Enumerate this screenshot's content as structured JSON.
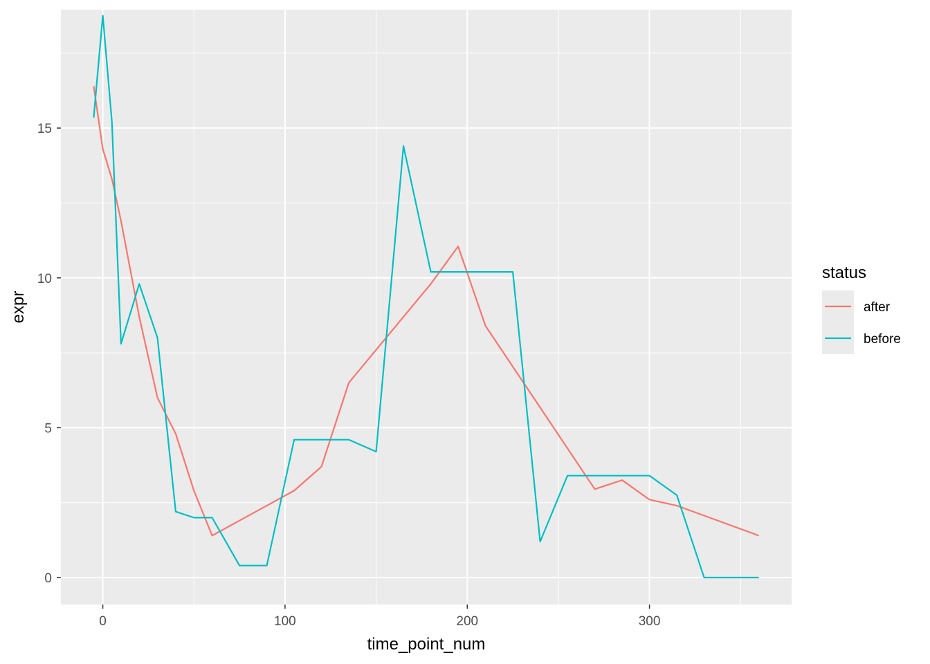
{
  "chart_data": {
    "type": "line",
    "title": "",
    "xlabel": "time_point_num",
    "ylabel": "expr",
    "xlim": [
      -23,
      378
    ],
    "ylim": [
      -0.9,
      18.95
    ],
    "x_ticks": [
      0,
      100,
      200,
      300
    ],
    "y_ticks": [
      0,
      5,
      10,
      15
    ],
    "x_tick_labels": [
      "0",
      "100",
      "200",
      "300"
    ],
    "y_tick_labels": [
      "0",
      "5",
      "10",
      "15"
    ],
    "grid": true,
    "legend": {
      "title": "status",
      "position": "right"
    },
    "series": [
      {
        "name": "after",
        "color": "#F8766D",
        "points": [
          [
            -5,
            16.4
          ],
          [
            0,
            14.3
          ],
          [
            5,
            13.3
          ],
          [
            10,
            11.9
          ],
          [
            20,
            8.7
          ],
          [
            30,
            6.0
          ],
          [
            40,
            4.8
          ],
          [
            50,
            2.9
          ],
          [
            60,
            1.4
          ],
          [
            75,
            1.9
          ],
          [
            90,
            2.4
          ],
          [
            105,
            2.9
          ],
          [
            120,
            3.7
          ],
          [
            135,
            6.5
          ],
          [
            180,
            9.8
          ],
          [
            195,
            11.05
          ],
          [
            210,
            8.4
          ],
          [
            270,
            2.95
          ],
          [
            285,
            3.25
          ],
          [
            300,
            2.6
          ],
          [
            315,
            2.4
          ],
          [
            360,
            1.4
          ]
        ]
      },
      {
        "name": "before",
        "color": "#00BFC4",
        "points": [
          [
            -5,
            15.35
          ],
          [
            0,
            18.75
          ],
          [
            5,
            15.2
          ],
          [
            10,
            7.8
          ],
          [
            20,
            9.8
          ],
          [
            30,
            8.0
          ],
          [
            40,
            2.2
          ],
          [
            50,
            2.0
          ],
          [
            60,
            2.0
          ],
          [
            75,
            0.4
          ],
          [
            90,
            0.4
          ],
          [
            105,
            4.6
          ],
          [
            120,
            4.6
          ],
          [
            135,
            4.6
          ],
          [
            150,
            4.2
          ],
          [
            165,
            14.4
          ],
          [
            180,
            10.2
          ],
          [
            195,
            10.2
          ],
          [
            210,
            10.2
          ],
          [
            225,
            10.2
          ],
          [
            240,
            1.2
          ],
          [
            255,
            3.4
          ],
          [
            270,
            3.4
          ],
          [
            285,
            3.4
          ],
          [
            300,
            3.4
          ],
          [
            315,
            2.75
          ],
          [
            330,
            0.0
          ],
          [
            345,
            0.0
          ],
          [
            360,
            0.0
          ]
        ]
      }
    ]
  }
}
